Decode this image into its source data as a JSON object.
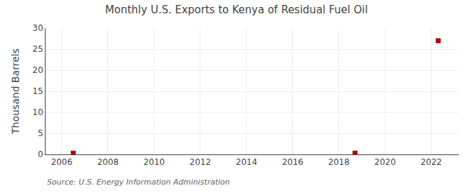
{
  "chart_data": {
    "type": "scatter",
    "title": "Monthly U.S. Exports to Kenya of Residual Fuel Oil",
    "ylabel": "Thousand Barrels",
    "annotations": [
      "Source: U.S. Energy Information Administration"
    ],
    "x": [
      2006.5,
      2018.7,
      2022.3
    ],
    "values": [
      0.3,
      0.3,
      27.0
    ],
    "color": "#aa0000",
    "marker": "square",
    "xlim": [
      2005.3,
      2023.2
    ],
    "ylim": [
      0,
      30
    ],
    "xticks": [
      2006,
      2008,
      2010,
      2012,
      2014,
      2016,
      2018,
      2020,
      2022
    ],
    "yticks": [
      0,
      5,
      10,
      15,
      20,
      25,
      30
    ],
    "grid": true
  }
}
